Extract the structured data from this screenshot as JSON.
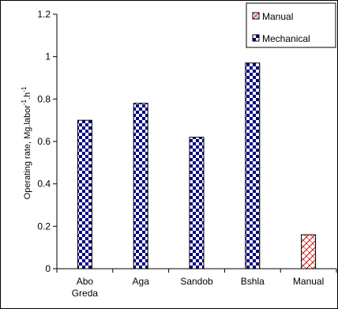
{
  "chart_data": {
    "type": "bar",
    "title": "",
    "xlabel": "",
    "ylabel": "Operating rate, Mg.labor⁻¹.h⁻¹",
    "ylabel_parts": [
      "Operating rate, Mg.labor",
      "-1",
      ".h",
      "-1"
    ],
    "ylim": [
      0,
      1.2
    ],
    "yticks": [
      "0",
      "0.2",
      "0.4",
      "0.6",
      "0.8",
      "1",
      "1.2"
    ],
    "categories": [
      "Abo Greda",
      "Aga",
      "Sandob",
      "Bshla",
      "Manual"
    ],
    "category_lines": [
      [
        "Abo",
        "Greda"
      ],
      [
        "Aga"
      ],
      [
        "Sandob"
      ],
      [
        "Bshla"
      ],
      [
        "Manual"
      ]
    ],
    "series": [
      {
        "name": "Mechanical",
        "values": [
          0.7,
          0.78,
          0.62,
          0.97,
          null
        ],
        "color": "#000080",
        "pattern": "checker"
      },
      {
        "name": "Manual",
        "values": [
          null,
          null,
          null,
          null,
          0.16
        ],
        "color": "#cc0000",
        "pattern": "diagonal-cross"
      }
    ],
    "legend": {
      "position": "top-right",
      "items": [
        {
          "label": "Manual",
          "series": "Manual"
        },
        {
          "label": "Mechanical",
          "series": "Mechanical"
        }
      ]
    },
    "grid": false
  }
}
